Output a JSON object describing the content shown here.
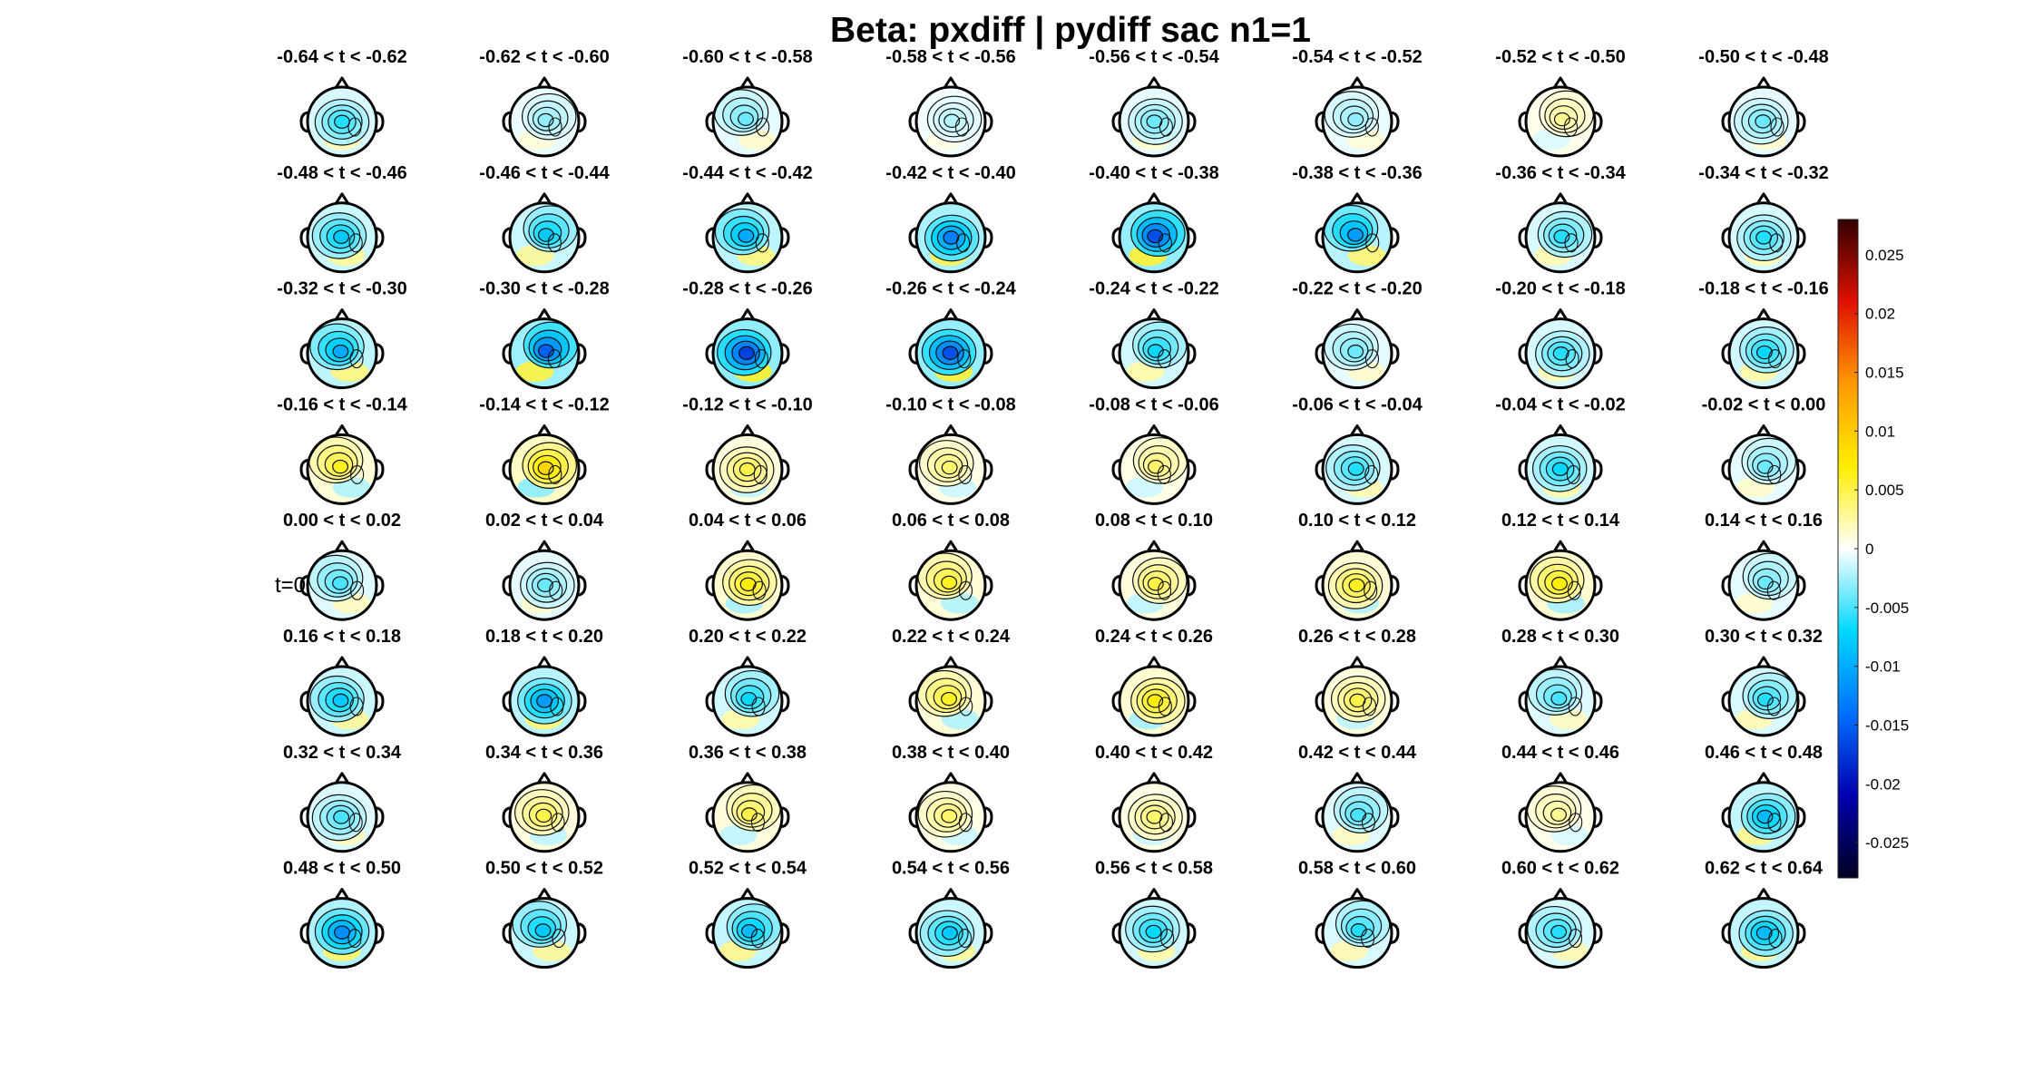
{
  "chart_data": {
    "type": "heatmap",
    "title": "Beta: pxdiff | pydiff sac  n1=1",
    "layout": {
      "rows": 8,
      "cols": 8
    },
    "panel_titles": [
      "-0.64 < t < -0.62",
      "-0.62 < t < -0.60",
      "-0.60 < t < -0.58",
      "-0.58 < t < -0.56",
      "-0.56 < t < -0.54",
      "-0.54 < t < -0.52",
      "-0.52 < t < -0.50",
      "-0.50 < t < -0.48",
      "-0.48 < t < -0.46",
      "-0.46 < t < -0.44",
      "-0.44 < t < -0.42",
      "-0.42 < t < -0.40",
      "-0.40 < t < -0.38",
      "-0.38 < t < -0.36",
      "-0.36 < t < -0.34",
      "-0.34 < t < -0.32",
      "-0.32 < t < -0.30",
      "-0.30 < t < -0.28",
      "-0.28 < t < -0.26",
      "-0.26 < t < -0.24",
      "-0.24 < t < -0.22",
      "-0.22 < t < -0.20",
      "-0.20 < t < -0.18",
      "-0.18 < t < -0.16",
      "-0.16 < t < -0.14",
      "-0.14 < t < -0.12",
      "-0.12 < t < -0.10",
      "-0.10 < t < -0.08",
      "-0.08 < t < -0.06",
      "-0.06 < t < -0.04",
      "-0.04 < t < -0.02",
      "-0.02 < t < 0.00",
      "0.00 < t < 0.02",
      "0.02 < t < 0.04",
      "0.04 < t < 0.06",
      "0.06 < t < 0.08",
      "0.08 < t < 0.10",
      "0.10 < t < 0.12",
      "0.12 < t < 0.14",
      "0.14 < t < 0.16",
      "0.16 < t < 0.18",
      "0.18 < t < 0.20",
      "0.20 < t < 0.22",
      "0.22 < t < 0.24",
      "0.24 < t < 0.26",
      "0.26 < t < 0.28",
      "0.28 < t < 0.30",
      "0.30 < t < 0.32",
      "0.32 < t < 0.34",
      "0.34 < t < 0.36",
      "0.36 < t < 0.38",
      "0.38 < t < 0.40",
      "0.40 < t < 0.42",
      "0.42 < t < 0.44",
      "0.44 < t < 0.46",
      "0.46 < t < 0.48",
      "0.48 < t < 0.50",
      "0.50 < t < 0.52",
      "0.52 < t < 0.54",
      "0.54 < t < 0.56",
      "0.56 < t < 0.58",
      "0.58 < t < 0.60",
      "0.60 < t < 0.62",
      "0.62 < t < 0.64"
    ],
    "panel_peak_values": [
      -0.006,
      -0.003,
      -0.004,
      -0.002,
      -0.004,
      -0.003,
      0.003,
      -0.004,
      -0.008,
      -0.008,
      -0.01,
      -0.013,
      -0.016,
      -0.011,
      -0.006,
      -0.006,
      -0.01,
      -0.015,
      -0.017,
      -0.016,
      -0.007,
      -0.004,
      -0.006,
      -0.007,
      0.006,
      0.009,
      0.005,
      0.004,
      0.004,
      -0.006,
      -0.007,
      -0.004,
      -0.005,
      -0.004,
      0.007,
      0.006,
      0.005,
      0.006,
      0.007,
      -0.004,
      -0.008,
      -0.011,
      -0.007,
      0.006,
      0.007,
      0.005,
      -0.005,
      -0.006,
      -0.005,
      0.005,
      0.005,
      0.004,
      0.004,
      -0.005,
      0.003,
      -0.009,
      -0.012,
      -0.008,
      -0.009,
      -0.008,
      -0.007,
      -0.006,
      -0.006,
      -0.009
    ],
    "annotation": "t=0",
    "annotation_panel": 32,
    "colorbar": {
      "clim": [
        -0.028,
        0.028
      ],
      "ticks": [
        0.025,
        0.02,
        0.015,
        0.01,
        0.005,
        0,
        -0.005,
        -0.01,
        -0.015,
        -0.02,
        -0.025
      ],
      "tick_labels": [
        "0.025",
        "0.02",
        "0.015",
        "0.01",
        "0.005",
        "0",
        "-0.005",
        "-0.01",
        "-0.015",
        "-0.02",
        "-0.025"
      ],
      "colormap": [
        "#000020",
        "#0000b0",
        "#0070ff",
        "#00d8ff",
        "#ffffff",
        "#ffee00",
        "#ff9a00",
        "#e01000",
        "#300000"
      ],
      "placement": "right"
    },
    "xlabel": "",
    "ylabel": ""
  }
}
